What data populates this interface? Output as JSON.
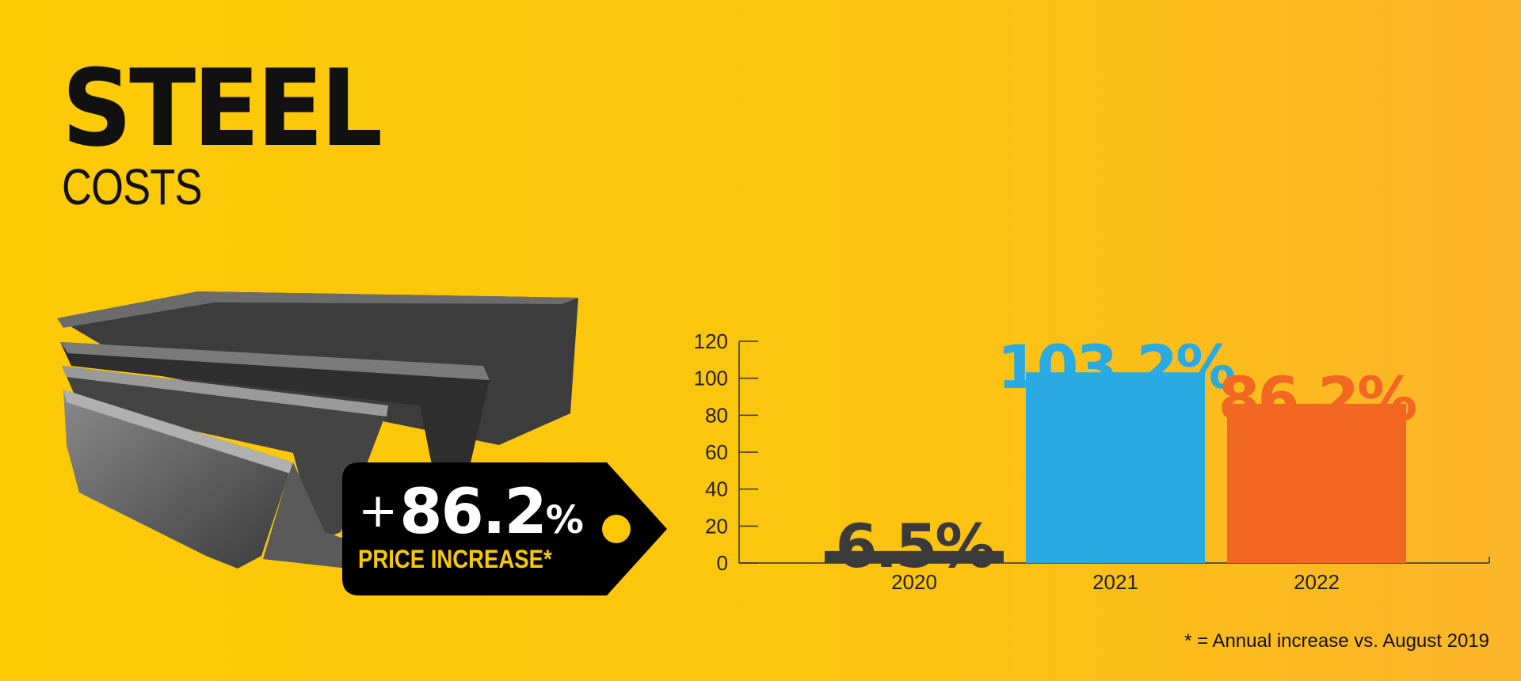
{
  "title": {
    "main": "STEEL",
    "sub": "COSTS"
  },
  "price_tag": {
    "sign": "+",
    "value": "86.2",
    "unit": "%",
    "label": "PRICE INCREASE*",
    "text_color": "#ffffff",
    "label_color": "#fcc806",
    "tag_color": "#000000"
  },
  "footnote": "* = Annual increase vs. August 2019",
  "illustration": {
    "icon": "steel-beams-image"
  },
  "colors": {
    "background": "#fcc80a",
    "axis": "#333333"
  },
  "chart_data": {
    "type": "bar",
    "categories": [
      "2020",
      "2021",
      "2022"
    ],
    "values": [
      6.5,
      103.2,
      86.2
    ],
    "data_labels": [
      "6.5%",
      "103.2%",
      "86.2%"
    ],
    "colors": [
      "#3a3a3a",
      "#29abe2",
      "#f26722"
    ],
    "ylim": [
      0,
      120
    ],
    "yticks": [
      0,
      20,
      40,
      60,
      80,
      100,
      120
    ],
    "title": "",
    "xlabel": "",
    "ylabel": "",
    "grid": false,
    "legend": "none"
  }
}
